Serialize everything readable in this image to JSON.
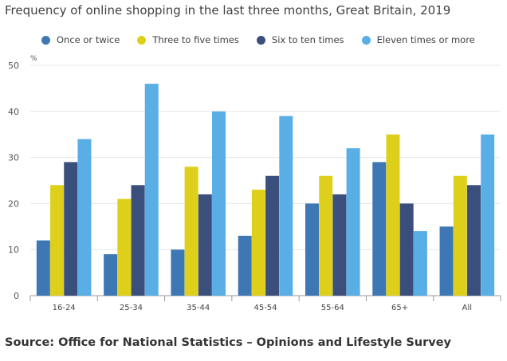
{
  "chart_title": "Frequency of online shopping in the last three months, Great Britain, 2019",
  "source": "Source: Office for National Statistics – Opinions and Lifestyle Survey",
  "chart_data": {
    "type": "bar",
    "title": "Frequency of online shopping in the last three months, Great Britain, 2019",
    "ylabel": "%",
    "xlabel": "",
    "ylim": [
      0,
      50
    ],
    "yticks": [
      0,
      10,
      20,
      30,
      40,
      50
    ],
    "grid": true,
    "legend_position": "top",
    "categories": [
      "16-24",
      "25-34",
      "35-44",
      "45-54",
      "55-64",
      "65+",
      "All"
    ],
    "series": [
      {
        "name": "Once or twice",
        "color": "#3d78b5",
        "values": [
          12,
          9,
          10,
          13,
          20,
          29,
          15
        ]
      },
      {
        "name": "Three to five times",
        "color": "#ded01a",
        "values": [
          24,
          21,
          28,
          23,
          26,
          35,
          26
        ]
      },
      {
        "name": "Six to ten times",
        "color": "#3b4f7c",
        "values": [
          29,
          24,
          22,
          26,
          22,
          20,
          24
        ]
      },
      {
        "name": "Eleven times or more",
        "color": "#5aaee6",
        "values": [
          34,
          46,
          40,
          39,
          32,
          14,
          35
        ]
      }
    ]
  }
}
